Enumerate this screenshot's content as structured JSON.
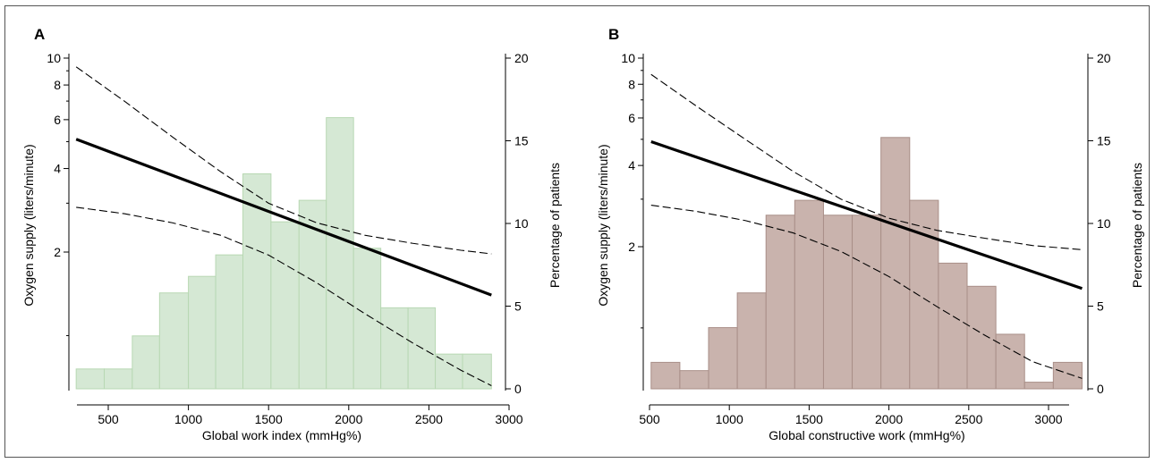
{
  "chart_data": [
    {
      "panel": "A",
      "type": "bar",
      "xlabel": "Global work index (mmHg%)",
      "ylabel_left": "Oxygen supply (liters/minute)",
      "ylabel_right": "Percentage of patients",
      "x_ticks": [
        500,
        1000,
        1500,
        2000,
        2500,
        3000
      ],
      "left_y_ticks": [
        2,
        4,
        6,
        8,
        10
      ],
      "left_y_scale": "log",
      "right_y_ticks": [
        0,
        5,
        10,
        15,
        20
      ],
      "histogram": {
        "color": "#d5e8d4",
        "edge_color": "#b8d8b3",
        "bins": [
          {
            "x0": 300,
            "x1": 475,
            "percent": 1.2
          },
          {
            "x0": 475,
            "x1": 650,
            "percent": 1.2
          },
          {
            "x0": 650,
            "x1": 820,
            "percent": 3.2
          },
          {
            "x0": 820,
            "x1": 1000,
            "percent": 5.8
          },
          {
            "x0": 1000,
            "x1": 1170,
            "percent": 6.8
          },
          {
            "x0": 1170,
            "x1": 1340,
            "percent": 8.1
          },
          {
            "x0": 1340,
            "x1": 1515,
            "percent": 13.0
          },
          {
            "x0": 1515,
            "x1": 1690,
            "percent": 10.1
          },
          {
            "x0": 1690,
            "x1": 1860,
            "percent": 11.4
          },
          {
            "x0": 1860,
            "x1": 2030,
            "percent": 16.4
          },
          {
            "x0": 2030,
            "x1": 2200,
            "percent": 8.5
          },
          {
            "x0": 2200,
            "x1": 2370,
            "percent": 4.9
          },
          {
            "x0": 2370,
            "x1": 2540,
            "percent": 4.9
          },
          {
            "x0": 2540,
            "x1": 2710,
            "percent": 2.1
          },
          {
            "x0": 2710,
            "x1": 2890,
            "percent": 2.1
          }
        ]
      },
      "fit_line": {
        "x": [
          300,
          2890
        ],
        "y": [
          5.1,
          1.4
        ]
      },
      "ci_upper": {
        "x": [
          300,
          600,
          900,
          1200,
          1500,
          1800,
          2100,
          2400,
          2700,
          2890
        ],
        "y": [
          9.3,
          7.0,
          5.2,
          3.9,
          3.0,
          2.55,
          2.3,
          2.15,
          2.03,
          1.97
        ]
      },
      "ci_lower": {
        "x": [
          300,
          600,
          900,
          1200,
          1500,
          1800,
          2100,
          2400,
          2700,
          2890
        ],
        "y": [
          2.9,
          2.75,
          2.55,
          2.3,
          1.95,
          1.55,
          1.2,
          0.94,
          0.75,
          0.66
        ]
      }
    },
    {
      "panel": "B",
      "type": "bar",
      "xlabel": "Global constructive work (mmHg%)",
      "ylabel_left": "Oxygen supply (liters/minute)",
      "ylabel_right": "Percentage of patients",
      "x_ticks": [
        500,
        1000,
        1500,
        2000,
        2500,
        3000
      ],
      "left_y_ticks": [
        2,
        4,
        6,
        8,
        10
      ],
      "left_y_scale": "log",
      "right_y_ticks": [
        0,
        5,
        10,
        15,
        20
      ],
      "histogram": {
        "color": "#c9b3ad",
        "edge_color": "#a98f88",
        "bins": [
          {
            "x0": 510,
            "x1": 690,
            "percent": 1.6
          },
          {
            "x0": 690,
            "x1": 870,
            "percent": 1.1
          },
          {
            "x0": 870,
            "x1": 1050,
            "percent": 3.7
          },
          {
            "x0": 1050,
            "x1": 1230,
            "percent": 5.8
          },
          {
            "x0": 1230,
            "x1": 1410,
            "percent": 10.5
          },
          {
            "x0": 1410,
            "x1": 1590,
            "percent": 11.4
          },
          {
            "x0": 1590,
            "x1": 1770,
            "percent": 10.5
          },
          {
            "x0": 1770,
            "x1": 1950,
            "percent": 10.5
          },
          {
            "x0": 1950,
            "x1": 2130,
            "percent": 15.2
          },
          {
            "x0": 2130,
            "x1": 2310,
            "percent": 11.4
          },
          {
            "x0": 2310,
            "x1": 2490,
            "percent": 7.6
          },
          {
            "x0": 2490,
            "x1": 2670,
            "percent": 6.2
          },
          {
            "x0": 2670,
            "x1": 2850,
            "percent": 3.3
          },
          {
            "x0": 2850,
            "x1": 3030,
            "percent": 0.4
          },
          {
            "x0": 3030,
            "x1": 3210,
            "percent": 1.6
          }
        ]
      },
      "fit_line": {
        "x": [
          510,
          3210
        ],
        "y": [
          4.9,
          1.4
        ]
      },
      "ci_upper": {
        "x": [
          510,
          800,
          1100,
          1400,
          1700,
          2000,
          2300,
          2600,
          2900,
          3210
        ],
        "y": [
          8.7,
          6.6,
          5.0,
          3.8,
          3.0,
          2.55,
          2.3,
          2.15,
          2.02,
          1.95
        ]
      },
      "ci_lower": {
        "x": [
          510,
          800,
          1100,
          1400,
          1700,
          2000,
          2300,
          2600,
          2900,
          3210
        ],
        "y": [
          2.85,
          2.7,
          2.5,
          2.25,
          1.92,
          1.55,
          1.2,
          0.94,
          0.75,
          0.65
        ]
      }
    }
  ]
}
